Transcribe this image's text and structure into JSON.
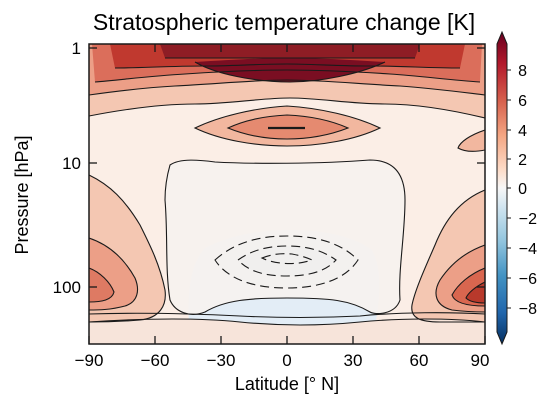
{
  "chart_data": {
    "type": "contour",
    "title": "Stratospheric temperature change [K]",
    "xlabel": "Latitude  [° N]",
    "ylabel": "Pressure [hPa]",
    "x_ticks": [
      "−90",
      "−60",
      "−30",
      "0",
      "30",
      "60",
      "90"
    ],
    "y_ticks": [
      "1",
      "10",
      "100"
    ],
    "xlim": [
      -90,
      90
    ],
    "ylim_hPa": [
      1,
      250
    ],
    "y_scale": "log",
    "y_inverted": true,
    "colorbar": {
      "ticks": [
        "8",
        "6",
        "4",
        "2",
        "0",
        "−2",
        "−4",
        "−6",
        "−8"
      ],
      "range": [
        -9,
        9
      ],
      "extend": "both",
      "colors": [
        "#053061",
        "#2166ac",
        "#4393c3",
        "#92c5de",
        "#d1e5f0",
        "#f7f7f7",
        "#fddbc7",
        "#f4a582",
        "#d6604d",
        "#b2182b",
        "#67001f"
      ]
    },
    "contour_levels": [
      -4,
      -3,
      -2,
      -1,
      1,
      2,
      3,
      4,
      5,
      6,
      7,
      8
    ],
    "features": [
      {
        "description": "strong warming maximum",
        "lat_range": [
          -70,
          70
        ],
        "pressure_hPa": 1.2,
        "peak_K": 8.5
      },
      {
        "description": "secondary warming",
        "lat_range": [
          -30,
          30
        ],
        "pressure_hPa": 4,
        "peak_K": 5
      },
      {
        "description": "weak cooling minimum",
        "lat_range": [
          -25,
          20
        ],
        "pressure_hPa": 80,
        "peak_K": -4
      },
      {
        "description": "high-latitude warming",
        "lat": -90,
        "pressure_hPa": 150,
        "peak_K": 4
      },
      {
        "description": "high-latitude warming",
        "lat": 90,
        "pressure_hPa": 150,
        "peak_K": 5
      }
    ]
  }
}
